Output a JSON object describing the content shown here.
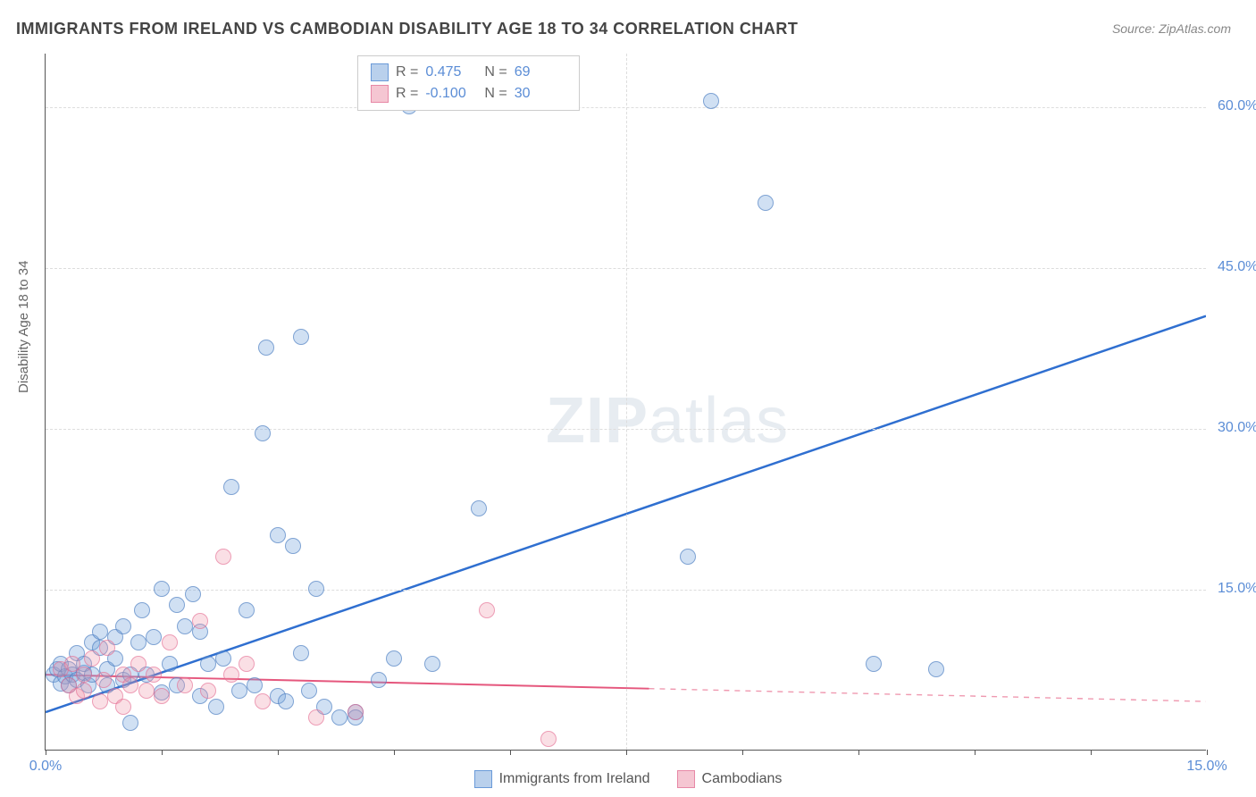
{
  "title": "IMMIGRANTS FROM IRELAND VS CAMBODIAN DISABILITY AGE 18 TO 34 CORRELATION CHART",
  "source": "Source: ZipAtlas.com",
  "y_axis_label": "Disability Age 18 to 34",
  "watermark": {
    "zip": "ZIP",
    "atlas": "atlas"
  },
  "chart": {
    "type": "scatter",
    "xlim": [
      0,
      15
    ],
    "ylim": [
      0,
      65
    ],
    "x_ticks": [
      0,
      15
    ],
    "y_ticks": [
      15,
      30,
      45,
      60
    ],
    "x_tick_labels": [
      "0.0%",
      "15.0%"
    ],
    "y_tick_labels": [
      "15.0%",
      "30.0%",
      "45.0%",
      "60.0%"
    ],
    "x_gridlines": [
      7.5
    ],
    "y_gridlines": [
      15,
      30,
      45,
      60
    ],
    "background_color": "#ffffff",
    "grid_color": "#dddddd",
    "marker_radius": 9,
    "series": [
      {
        "name": "Immigrants from Ireland",
        "color_fill": "rgba(120, 165, 220, 0.35)",
        "color_stroke": "rgba(70, 120, 190, 0.6)",
        "swatch_fill": "#b9d0ec",
        "swatch_border": "#6a9ad8",
        "R": "0.475",
        "N": "69",
        "trend": {
          "x1": 0,
          "y1": 3.5,
          "x2": 15,
          "y2": 40.5,
          "color": "#2f6fd0",
          "width": 2.5,
          "solid_until_x": 15
        },
        "points": [
          [
            0.1,
            7.0
          ],
          [
            0.15,
            7.5
          ],
          [
            0.2,
            6.2
          ],
          [
            0.2,
            8.0
          ],
          [
            0.25,
            6.8
          ],
          [
            0.3,
            6.0
          ],
          [
            0.3,
            7.5
          ],
          [
            0.35,
            7.0
          ],
          [
            0.4,
            6.5
          ],
          [
            0.4,
            9.0
          ],
          [
            0.5,
            7.2
          ],
          [
            0.5,
            8.0
          ],
          [
            0.55,
            6.0
          ],
          [
            0.6,
            10.0
          ],
          [
            0.6,
            7.0
          ],
          [
            0.7,
            9.5
          ],
          [
            0.7,
            11.0
          ],
          [
            0.8,
            7.5
          ],
          [
            0.8,
            6.0
          ],
          [
            0.9,
            10.5
          ],
          [
            0.9,
            8.5
          ],
          [
            1.0,
            6.5
          ],
          [
            1.0,
            11.5
          ],
          [
            1.1,
            7.0
          ],
          [
            1.1,
            2.5
          ],
          [
            1.2,
            10.0
          ],
          [
            1.25,
            13.0
          ],
          [
            1.3,
            7.0
          ],
          [
            1.4,
            10.5
          ],
          [
            1.5,
            15.0
          ],
          [
            1.5,
            5.3
          ],
          [
            1.6,
            8.0
          ],
          [
            1.7,
            13.5
          ],
          [
            1.7,
            6.0
          ],
          [
            1.8,
            11.5
          ],
          [
            1.9,
            14.5
          ],
          [
            2.0,
            5.0
          ],
          [
            2.0,
            11.0
          ],
          [
            2.1,
            8.0
          ],
          [
            2.2,
            4.0
          ],
          [
            2.3,
            8.5
          ],
          [
            2.4,
            24.5
          ],
          [
            2.5,
            5.5
          ],
          [
            2.6,
            13.0
          ],
          [
            2.7,
            6.0
          ],
          [
            2.8,
            29.5
          ],
          [
            2.85,
            37.5
          ],
          [
            3.0,
            5.0
          ],
          [
            3.0,
            20.0
          ],
          [
            3.1,
            4.5
          ],
          [
            3.2,
            19.0
          ],
          [
            3.3,
            9.0
          ],
          [
            3.3,
            38.5
          ],
          [
            3.4,
            5.5
          ],
          [
            3.5,
            15.0
          ],
          [
            3.6,
            4.0
          ],
          [
            3.8,
            3.0
          ],
          [
            4.0,
            3.5
          ],
          [
            4.0,
            3.0
          ],
          [
            4.3,
            6.5
          ],
          [
            4.5,
            8.5
          ],
          [
            4.7,
            60.0
          ],
          [
            5.0,
            8.0
          ],
          [
            5.6,
            22.5
          ],
          [
            8.3,
            18.0
          ],
          [
            8.6,
            60.5
          ],
          [
            9.3,
            51.0
          ],
          [
            10.7,
            8.0
          ],
          [
            11.5,
            7.5
          ]
        ]
      },
      {
        "name": "Cambodians",
        "color_fill": "rgba(240, 150, 170, 0.3)",
        "color_stroke": "rgba(225, 100, 140, 0.55)",
        "swatch_fill": "#f5c6d2",
        "swatch_border": "#e788a6",
        "R": "-0.100",
        "N": "30",
        "trend": {
          "x1": 0,
          "y1": 7.0,
          "x2": 15,
          "y2": 4.5,
          "color": "#e5577d",
          "width": 2,
          "solid_until_x": 7.8
        },
        "points": [
          [
            0.2,
            7.5
          ],
          [
            0.3,
            6.0
          ],
          [
            0.35,
            8.0
          ],
          [
            0.4,
            5.0
          ],
          [
            0.5,
            7.0
          ],
          [
            0.5,
            5.5
          ],
          [
            0.6,
            8.5
          ],
          [
            0.7,
            4.5
          ],
          [
            0.75,
            6.5
          ],
          [
            0.8,
            9.5
          ],
          [
            0.9,
            5.0
          ],
          [
            1.0,
            7.0
          ],
          [
            1.0,
            4.0
          ],
          [
            1.1,
            6.0
          ],
          [
            1.2,
            8.0
          ],
          [
            1.3,
            5.5
          ],
          [
            1.4,
            7.0
          ],
          [
            1.5,
            5.0
          ],
          [
            1.6,
            10.0
          ],
          [
            1.8,
            6.0
          ],
          [
            2.0,
            12.0
          ],
          [
            2.1,
            5.5
          ],
          [
            2.3,
            18.0
          ],
          [
            2.4,
            7.0
          ],
          [
            2.6,
            8.0
          ],
          [
            2.8,
            4.5
          ],
          [
            3.5,
            3.0
          ],
          [
            4.0,
            3.5
          ],
          [
            5.7,
            13.0
          ],
          [
            6.5,
            1.0
          ]
        ]
      }
    ]
  },
  "legend_bottom": [
    {
      "label": "Immigrants from Ireland",
      "swatch_fill": "#b9d0ec",
      "swatch_border": "#6a9ad8"
    },
    {
      "label": "Cambodians",
      "swatch_fill": "#f5c6d2",
      "swatch_border": "#e788a6"
    }
  ]
}
